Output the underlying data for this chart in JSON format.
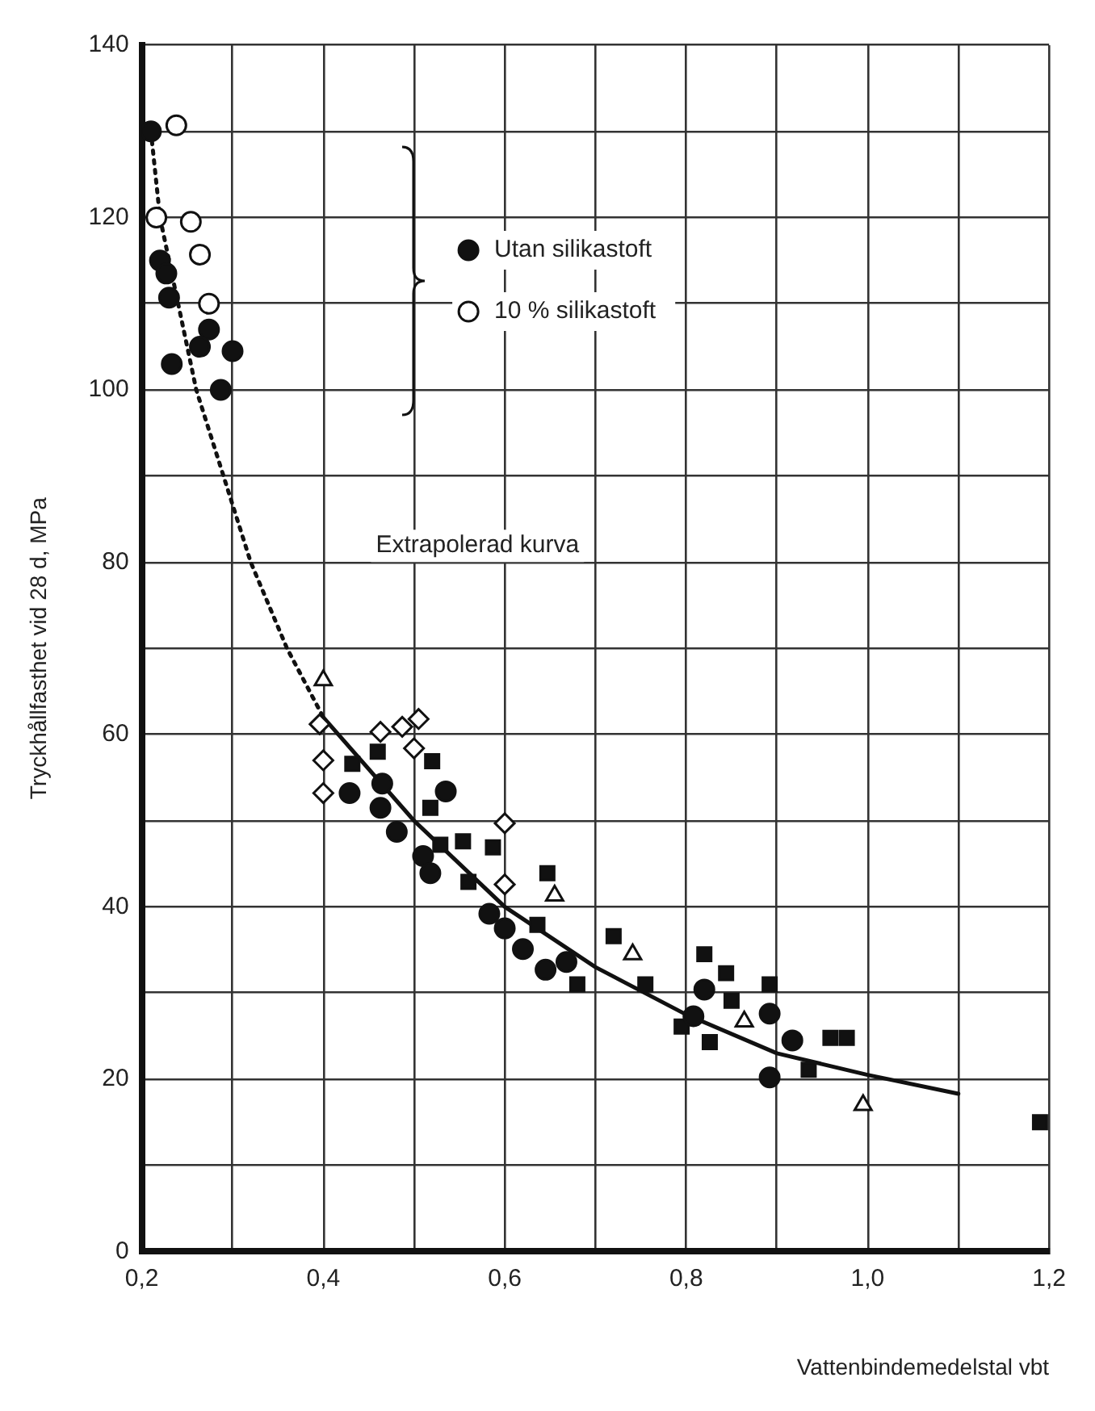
{
  "chart_data": {
    "type": "scatter",
    "xlabel": "Vattenbindemedelstal vbt",
    "ylabel": "Tryckhållfasthet vid 28 d, MPa",
    "xlim": [
      0.2,
      1.2
    ],
    "ylim": [
      0,
      140
    ],
    "xticks": [
      {
        "value": 0.2,
        "label": "0,2"
      },
      {
        "value": 0.3,
        "label": null
      },
      {
        "value": 0.4,
        "label": "0,4"
      },
      {
        "value": 0.5,
        "label": null
      },
      {
        "value": 0.6,
        "label": "0,6"
      },
      {
        "value": 0.7,
        "label": null
      },
      {
        "value": 0.8,
        "label": "0,8"
      },
      {
        "value": 0.9,
        "label": null
      },
      {
        "value": 1.0,
        "label": "1,0"
      },
      {
        "value": 1.1,
        "label": null
      },
      {
        "value": 1.2,
        "label": "1,2"
      }
    ],
    "yticks": [
      0,
      {
        "value": 10,
        "label": null
      },
      20,
      {
        "value": 30,
        "label": null
      },
      40,
      {
        "value": 50,
        "label": null
      },
      60,
      {
        "value": 70,
        "label": null
      },
      80,
      {
        "value": 90,
        "label": null
      },
      100,
      {
        "value": 110,
        "label": null
      },
      120,
      {
        "value": 130,
        "label": null
      },
      140
    ],
    "grid": true,
    "legend": "top",
    "annotations": [
      "Extrapolerad kurva"
    ],
    "series": [
      {
        "name": "Utan silikastoft",
        "color": "#111111",
        "marker": "circle",
        "x": [
          0.21,
          0.22,
          0.227,
          0.23,
          0.274,
          0.264,
          0.233,
          0.3,
          0.287,
          0.429,
          0.465,
          0.463,
          0.535,
          0.481,
          0.51,
          0.518,
          0.583,
          0.6,
          0.62,
          0.645,
          0.668,
          0.82,
          0.808,
          0.892,
          0.917,
          0.892
        ],
        "values": [
          130,
          115,
          113.5,
          110.7,
          107,
          105,
          103,
          104.5,
          100,
          53.2,
          54.3,
          51.5,
          53.4,
          48.7,
          45.9,
          43.9,
          39.2,
          37.5,
          35.1,
          32.7,
          33.6,
          30.4,
          27.3,
          27.6,
          24.5,
          20.2
        ]
      },
      {
        "name": "10 % silikastoft",
        "color": "#ffffff",
        "marker": "circle",
        "x": [
          0.238,
          0.216,
          0.254,
          0.264,
          0.274
        ],
        "values": [
          130.7,
          120,
          119.5,
          115.7,
          110
        ]
      },
      {
        "color": "#111111",
        "marker": "square",
        "x": [
          0.432,
          0.52,
          0.46,
          0.518,
          0.529,
          0.554,
          0.56,
          0.587,
          0.647,
          0.636,
          0.68,
          0.72,
          0.755,
          0.82,
          0.844,
          0.892,
          0.795,
          0.826,
          0.85,
          0.935,
          0.959,
          0.977,
          1.19
        ],
        "values": [
          56.6,
          56.9,
          58,
          51.5,
          47.2,
          47.6,
          42.9,
          46.9,
          43.9,
          37.9,
          31,
          36.6,
          31,
          34.5,
          32.3,
          31,
          26.1,
          24.3,
          29.1,
          21.1,
          24.8,
          24.8,
          15
        ]
      },
      {
        "color": "#ffffff",
        "marker": "diamond",
        "x": [
          0.396,
          0.4,
          0.4,
          0.463,
          0.487,
          0.505,
          0.5,
          0.6,
          0.6
        ],
        "values": [
          61.2,
          57,
          53.2,
          60.3,
          60.9,
          61.8,
          58.4,
          49.7,
          42.6
        ]
      },
      {
        "color": "#ffffff",
        "marker": "triangle",
        "x": [
          0.4,
          0.655,
          0.741,
          0.864,
          0.995
        ],
        "values": [
          66.3,
          41.3,
          34.5,
          26.7,
          17
        ]
      },
      {
        "type": "line",
        "color": "#111111",
        "marker": "none",
        "line_style": "dotted",
        "x": [
          0.21,
          0.22,
          0.24,
          0.26,
          0.29,
          0.32,
          0.36,
          0.4
        ],
        "values": [
          130,
          120,
          110,
          100,
          90,
          80,
          70,
          62
        ]
      },
      {
        "type": "line",
        "color": "#111111",
        "marker": "none",
        "line_style": "solid",
        "x": [
          0.4,
          0.5,
          0.6,
          0.7,
          0.8,
          0.9,
          1.0,
          1.1
        ],
        "values": [
          62,
          50,
          40,
          33,
          27.5,
          23,
          20.5,
          18.3
        ]
      }
    ]
  }
}
